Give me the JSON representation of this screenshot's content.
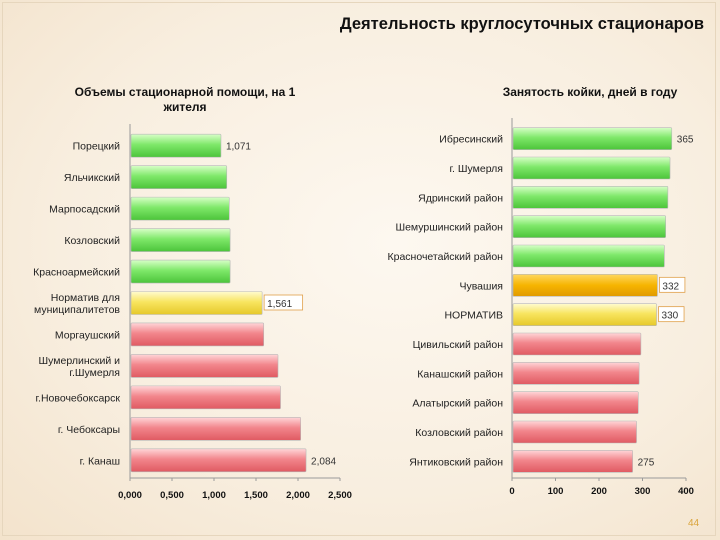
{
  "page": {
    "title": "Деятельность круглосуточных стационаров",
    "page_number": "44"
  },
  "colors": {
    "green": "#7fe06a",
    "yellow": "#f5e05a",
    "orange": "#f4b400",
    "red": "#ef7f86"
  },
  "chart_data": [
    {
      "type": "bar",
      "orientation": "horizontal",
      "title": "Объемы стационарной помощи, на 1 жителя",
      "categories": [
        "Порецкий",
        "Яльчикский",
        "Марпосадский",
        "Козловский",
        "Красноармейский",
        "Норматив для муниципалитетов",
        "Моргаушский",
        "Шумерлинский и г.Шумерля",
        "г.Новочебоксарск",
        "г. Чебоксары",
        "г. Канаш"
      ],
      "values": [
        1.071,
        1.14,
        1.17,
        1.18,
        1.18,
        1.561,
        1.58,
        1.75,
        1.78,
        2.02,
        2.084
      ],
      "colors": [
        "green",
        "green",
        "green",
        "green",
        "green",
        "yellow",
        "red",
        "red",
        "red",
        "red",
        "red"
      ],
      "data_labels": [
        "1,071",
        "",
        "",
        "",
        "",
        "1,561",
        "",
        "",
        "",
        "",
        "2,084"
      ],
      "xlim": [
        0,
        2.5
      ],
      "xticks": [
        "0,000",
        "0,500",
        "1,000",
        "1,500",
        "2,000",
        "2,500"
      ]
    },
    {
      "type": "bar",
      "orientation": "horizontal",
      "title": "Занятость койки, дней в году",
      "categories": [
        "Ибресинский",
        "г. Шумерля",
        "Ядринский район",
        "Шемуршинский район",
        "Красночетайский район",
        "Чувашия",
        "НОРМАТИВ",
        "Цивильский район",
        "Канашский район",
        "Алатырский район",
        "Козловский район",
        "Янтиковский район"
      ],
      "values": [
        365,
        361,
        356,
        351,
        348,
        332,
        330,
        294,
        290,
        288,
        284,
        275
      ],
      "colors": [
        "green",
        "green",
        "green",
        "green",
        "green",
        "orange",
        "yellow",
        "red",
        "red",
        "red",
        "red",
        "red"
      ],
      "data_labels": [
        "365",
        "",
        "",
        "",
        "",
        "332",
        "330",
        "",
        "",
        "",
        "",
        "275"
      ],
      "xlim": [
        0,
        400
      ],
      "xticks": [
        "0",
        "100",
        "200",
        "300",
        "400"
      ]
    }
  ]
}
